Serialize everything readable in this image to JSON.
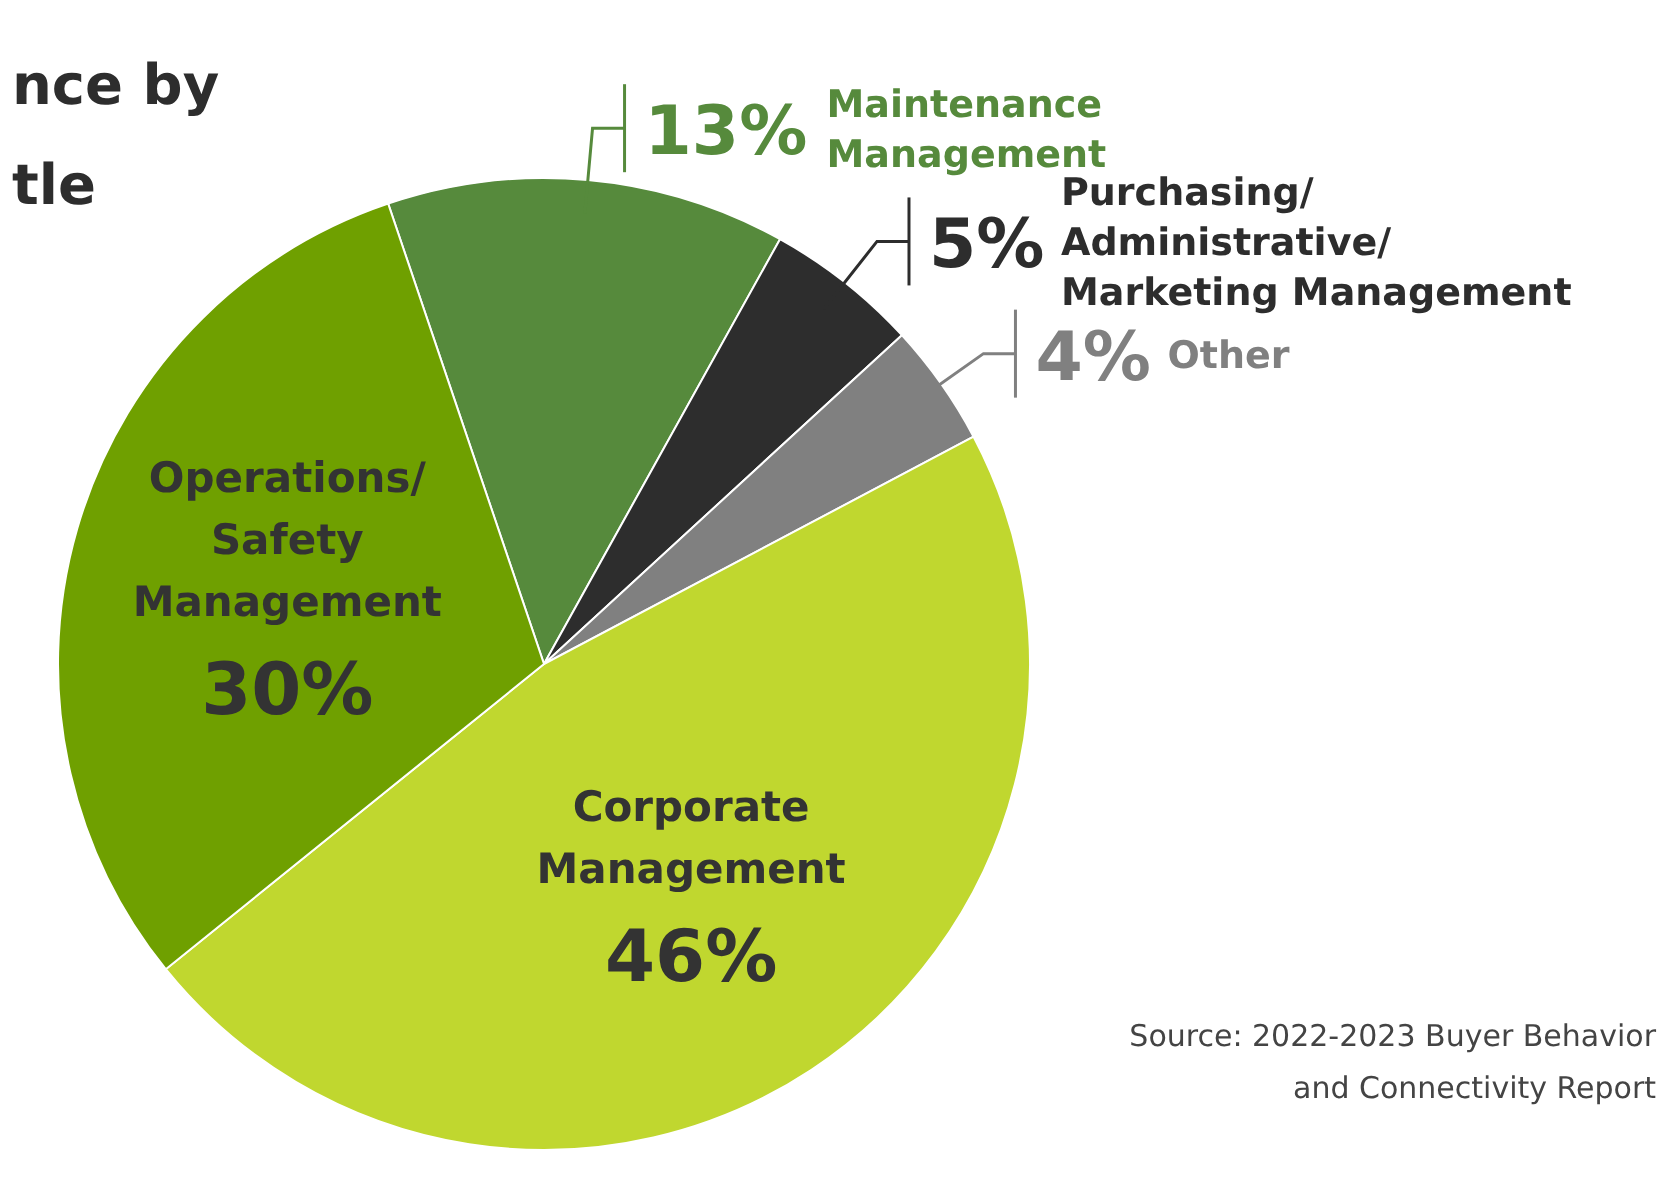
{
  "chart_data": {
    "type": "pie",
    "title": "nce by tle",
    "categories": [
      "Maintenance Management",
      "Purchasing/ Administrative/ Marketing Management",
      "Other",
      "Corporate Management",
      "Operations/ Safety Management"
    ],
    "values": [
      13,
      5,
      4,
      46,
      30
    ],
    "value_labels": [
      "13%",
      "5%",
      "4%",
      "46%",
      "30%"
    ],
    "colors": [
      "#568a3c",
      "#2d2d2d",
      "#808080",
      "#c0d72f",
      "#6fa000"
    ],
    "annotations": [
      "Source: 2022-2023 Buyer Behavior and Connectivity Report"
    ]
  }
}
